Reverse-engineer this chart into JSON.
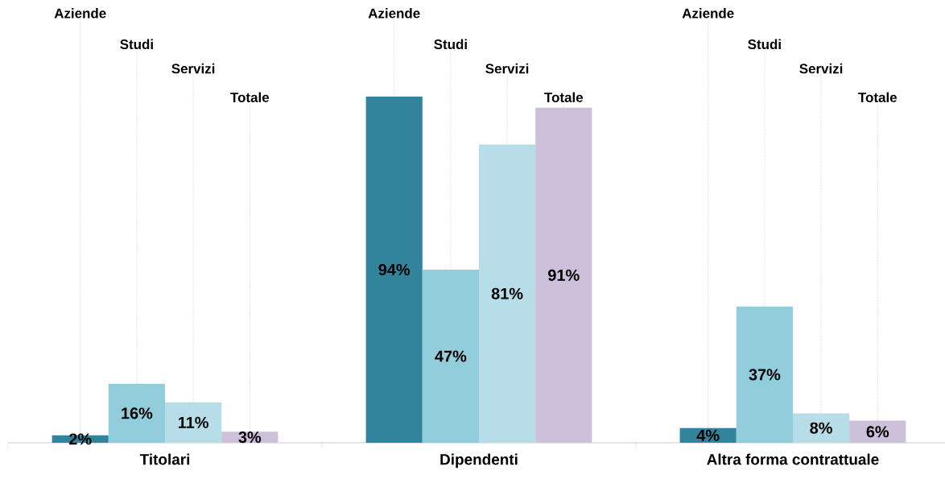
{
  "chart_data": {
    "type": "bar",
    "categories": [
      "Titolari",
      "Dipendenti",
      "Altra forma contrattuale"
    ],
    "series": [
      {
        "name": "Aziende",
        "color": "#31849b",
        "values": [
          2,
          94,
          4
        ],
        "value_labels": [
          "2%",
          "94%",
          "4%"
        ]
      },
      {
        "name": "Studi",
        "color": "#92cddc",
        "values": [
          16,
          47,
          37
        ],
        "value_labels": [
          "16%",
          "47%",
          "37%"
        ]
      },
      {
        "name": "Servizi",
        "color": "#b7dee8",
        "values": [
          11,
          81,
          8
        ],
        "value_labels": [
          "11%",
          "81%",
          "8%"
        ]
      },
      {
        "name": "Totale",
        "color": "#ccc0da",
        "values": [
          3,
          91,
          6
        ],
        "value_labels": [
          "3%",
          "91%",
          "6%"
        ]
      }
    ]
  }
}
